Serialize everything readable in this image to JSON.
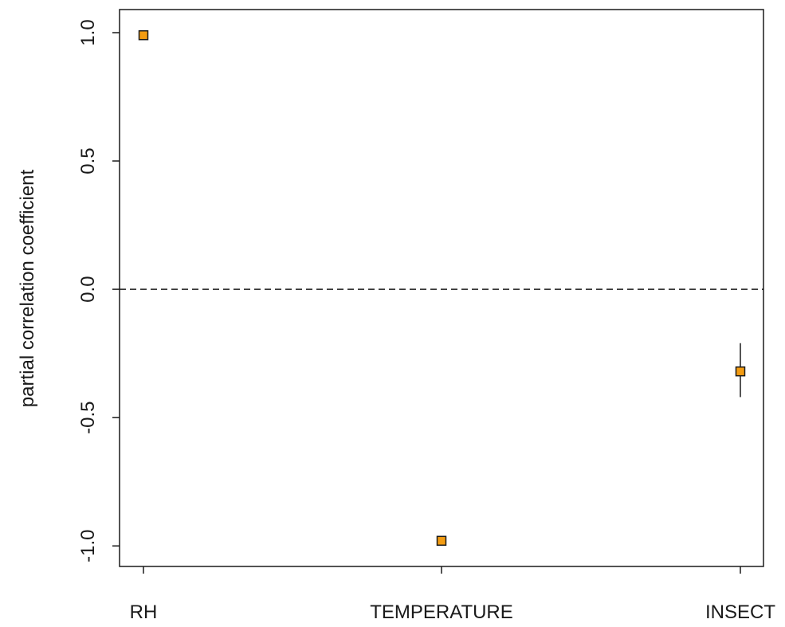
{
  "chart_data": {
    "type": "scatter",
    "title": "",
    "xlabel": "",
    "ylabel": "partial correlation coefficient",
    "categories": [
      "RH",
      "TEMPERATURE",
      "INSECT"
    ],
    "values": [
      0.99,
      -0.98,
      -0.32
    ],
    "error_low": [
      0.99,
      -0.98,
      -0.42
    ],
    "error_high": [
      0.99,
      -0.98,
      -0.21
    ],
    "ylim": [
      -1.08,
      1.09
    ],
    "yticks": [
      1.0,
      0.5,
      0.0,
      -0.5,
      -1.0
    ],
    "ytick_labels": [
      "1.0",
      "0.5",
      "0.0",
      "-0.5",
      "-1.0"
    ],
    "reference_line": 0.0,
    "marker_color": "#f39c12",
    "marker_edge_color": "#1a1a1a",
    "grid": false,
    "legend": "none"
  }
}
